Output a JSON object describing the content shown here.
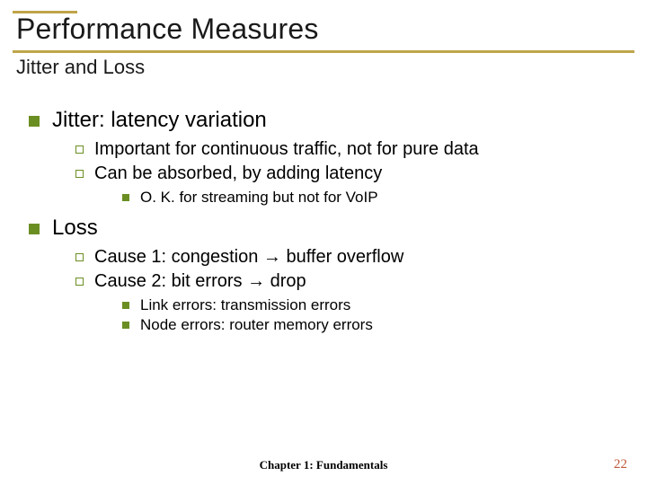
{
  "colors": {
    "rule": "#bfa54a",
    "bullet": "#6b8e23",
    "pagenum": "#c05a3a",
    "background": "#ffffff",
    "text": "#000000"
  },
  "typography": {
    "title_fontsize": 32,
    "subtitle_fontsize": 22,
    "lvl1_fontsize": 24,
    "lvl2_fontsize": 20,
    "lvl3_fontsize": 17,
    "footer_fontsize": 13,
    "pagenum_fontsize": 15
  },
  "title": "Performance Measures",
  "subtitle": "Jitter and Loss",
  "content": {
    "jitter": {
      "heading": "Jitter: latency variation",
      "sub1": "Important for continuous traffic, not for pure data",
      "sub2": "Can be absorbed, by adding latency",
      "sub2_detail1": "O. K. for streaming but not for VoIP"
    },
    "loss": {
      "heading": "Loss",
      "sub1": "Cause 1: congestion → buffer overflow",
      "sub2": "Cause 2: bit errors → drop",
      "sub2_detail1": "Link errors: transmission errors",
      "sub2_detail2": "Node errors: router memory errors"
    }
  },
  "footer": "Chapter 1: Fundamentals",
  "pagenum": "22"
}
